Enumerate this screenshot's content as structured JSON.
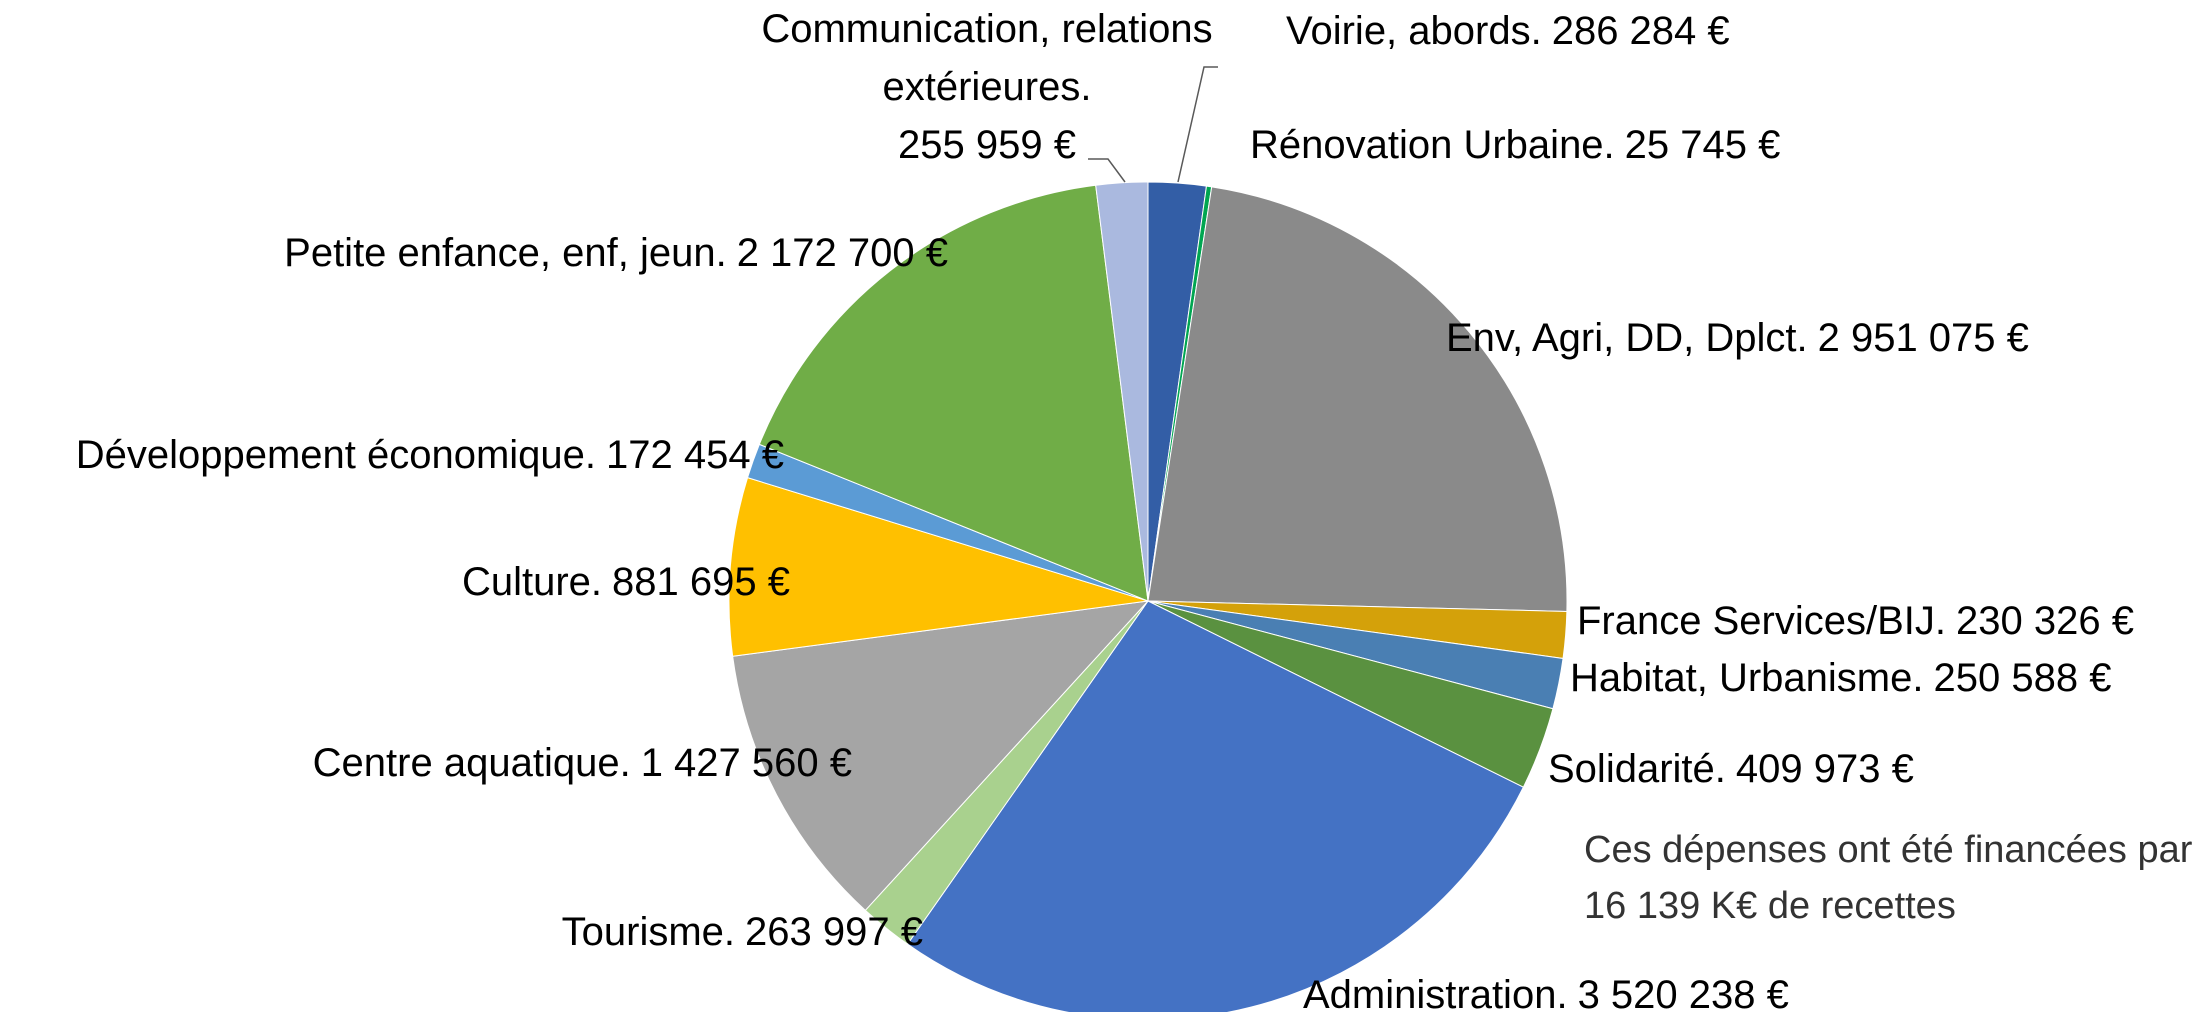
{
  "chart_data": {
    "type": "pie",
    "categories": [
      "Voirie, abords.",
      "Rénovation Urbaine.",
      "Env, Agri, DD, Dplct.",
      "France Services/BIJ.",
      "Habitat, Urbanisme.",
      "Solidarité.",
      "Administration.",
      "Tourisme.",
      "Centre aquatique.",
      "Culture.",
      "Développement économique.",
      "Petite enfance, enf, jeun.",
      "Communication, relations extérieures."
    ],
    "values": [
      286284,
      25745,
      2951075,
      230326,
      250588,
      409973,
      3520238,
      263997,
      1427560,
      881695,
      172454,
      2172700,
      255959
    ],
    "value_labels": [
      "286 284 €",
      "25 745 €",
      "2 951 075 €",
      "230 326 €",
      "250 588 €",
      "409 973 €",
      "3 520 238 €",
      "263 997 €",
      "1 427 560 €",
      "881 695 €",
      "172 454 €",
      "2 172 700 €",
      "255 959 €"
    ],
    "colors": [
      "#335ea6",
      "#00a651",
      "#8a8a8a",
      "#d4a10a",
      "#4a7fb3",
      "#5a9140",
      "#4472c4",
      "#a9d18e",
      "#a5a5a5",
      "#ffc000",
      "#5b9bd5",
      "#70ad47",
      "#aab9df"
    ],
    "annotation": "Ces dépenses ont été financées par 16 139 K€ de recettes"
  }
}
